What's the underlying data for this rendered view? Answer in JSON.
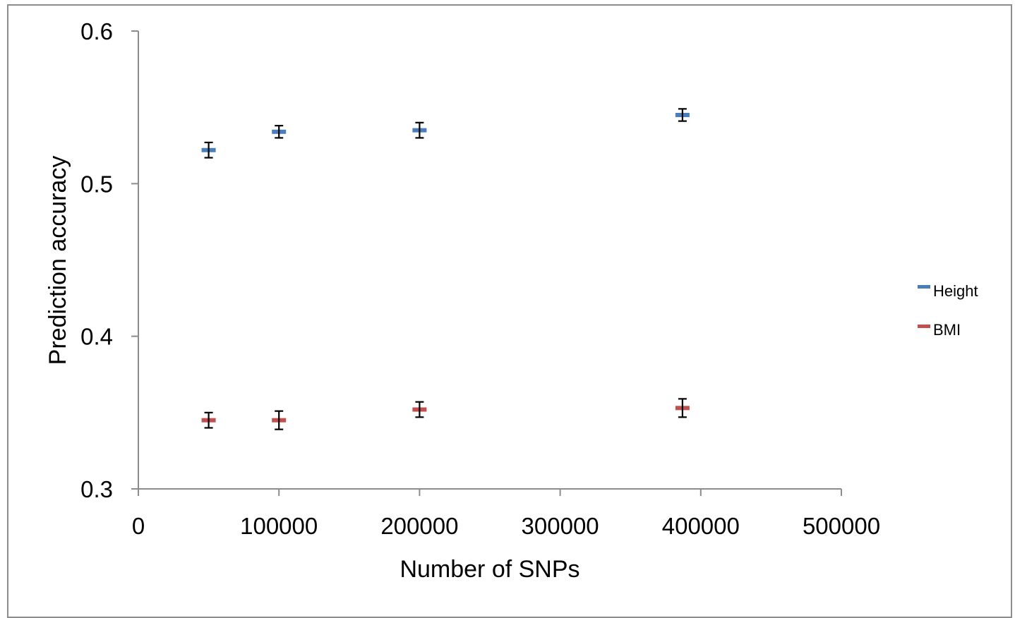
{
  "chart_data": {
    "type": "scatter",
    "title": "",
    "xlabel": "Number of SNPs",
    "ylabel": "Prediction accuracy",
    "xlim": [
      0,
      500000
    ],
    "ylim": [
      0.3,
      0.6
    ],
    "x_ticks": [
      "0",
      "100000",
      "200000",
      "300000",
      "400000",
      "500000"
    ],
    "y_ticks": [
      "0.3",
      "0.4",
      "0.5",
      "0.6"
    ],
    "grid": false,
    "legend_position": "right",
    "series": [
      {
        "name": "Height",
        "color": "#4a7ebb",
        "x": [
          50000,
          100000,
          200000,
          387000
        ],
        "y": [
          0.522,
          0.534,
          0.535,
          0.545
        ],
        "error": [
          0.005,
          0.004,
          0.005,
          0.004
        ]
      },
      {
        "name": "BMI",
        "color": "#c0504d",
        "x": [
          50000,
          100000,
          200000,
          387000
        ],
        "y": [
          0.345,
          0.345,
          0.352,
          0.353
        ],
        "error": [
          0.005,
          0.006,
          0.005,
          0.006
        ]
      }
    ]
  }
}
